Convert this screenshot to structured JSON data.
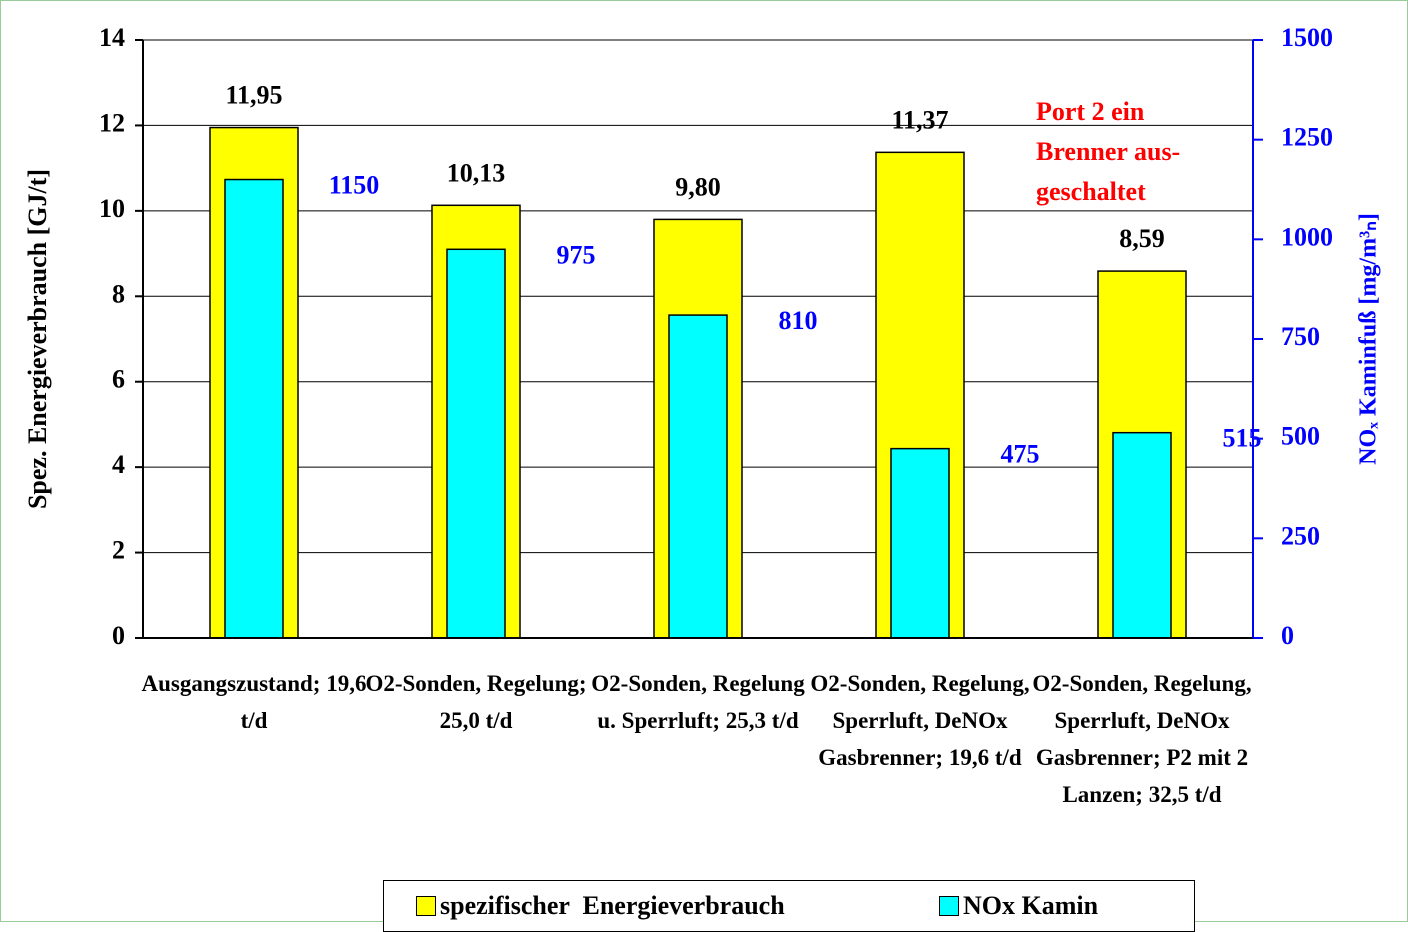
{
  "chart_data": {
    "type": "bar",
    "categories": [
      "Ausgangszustand; 19,6 t/d",
      "O2-Sonden, Regelung; 25,0 t/d",
      "O2-Sonden, Regelung u. Sperrluft; 25,3 t/d",
      "O2-Sonden, Regelung, Sperrluft, DeNOx Gasbrenner; 19,6 t/d",
      "O2-Sonden, Regelung, Sperrluft, DeNOx Gasbrenner; P2 mit 2 Lanzen; 32,5 t/d"
    ],
    "series": [
      {
        "name": "spezifischer  Energieverbrauch",
        "color": "#ffff00",
        "values": [
          11.95,
          10.13,
          9.8,
          11.37,
          8.59
        ],
        "value_labels": [
          "11,95",
          "10,13",
          "9,80",
          "11,37",
          "8,59"
        ]
      },
      {
        "name": "NOx Kamin",
        "color": "#00ffff",
        "axis": "y2",
        "values": [
          1150,
          975,
          810,
          475,
          515
        ]
      }
    ],
    "y_label": "Spez. Energieverbrauch [GJ/t]",
    "y2_label": "NOₓ Kaminfuß [mg/m³ₙ]",
    "annotation": "Port 2 ein Brenner aus-geschaltet",
    "ylim": [
      0,
      14
    ],
    "yticks": [
      0,
      2,
      4,
      6,
      8,
      10,
      12,
      14
    ],
    "y2lim": [
      0,
      1500
    ],
    "y2ticks": [
      0,
      250,
      500,
      750,
      1000,
      1250,
      1500
    ],
    "grid": true
  }
}
